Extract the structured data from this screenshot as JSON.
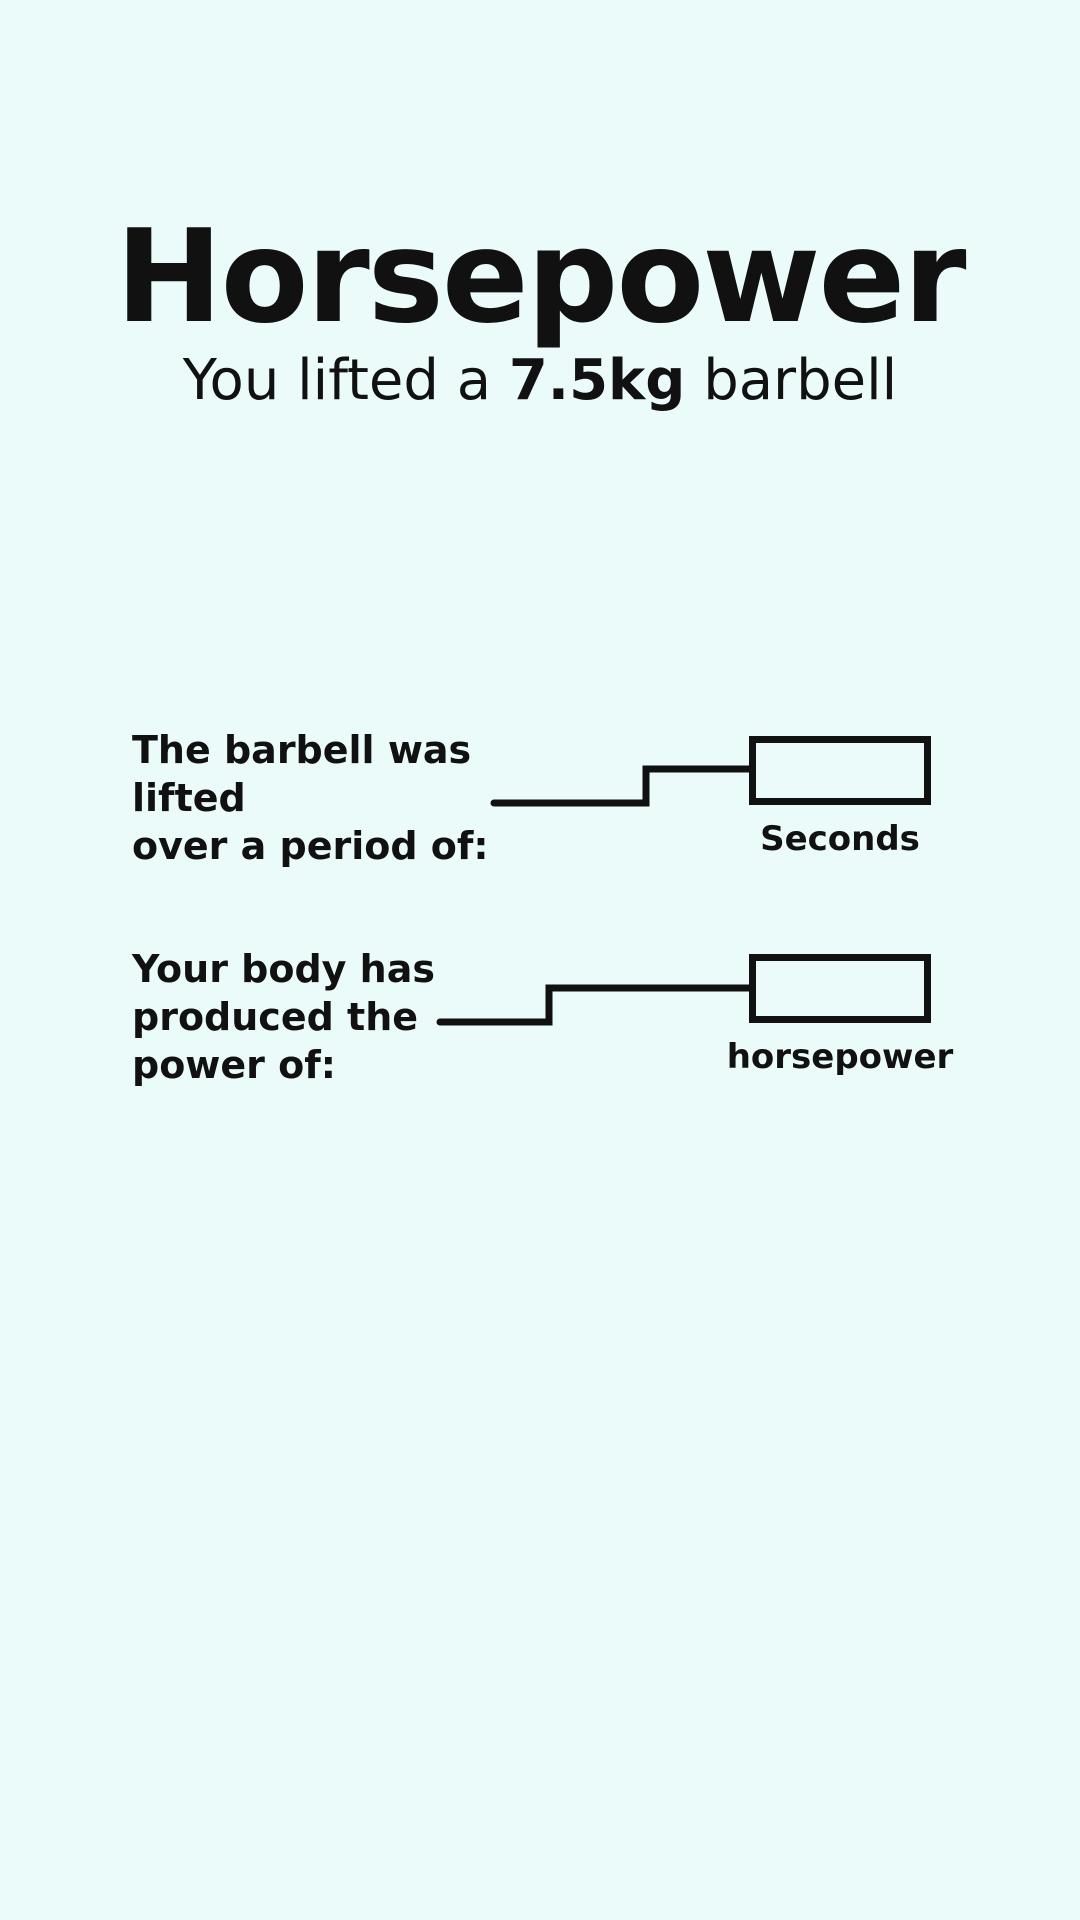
{
  "title": "Horsepower",
  "subtitle": {
    "prefix": "You lifted a",
    "weight": "7.5kg",
    "suffix": "barbell"
  },
  "period_question": {
    "line1": "The barbell was lifted",
    "line2": "over a period of:",
    "value": "",
    "unit": "Seconds"
  },
  "power_question": {
    "line1": "Your body has",
    "line2": "produced the",
    "line3": "power of:",
    "value": "",
    "unit": "horsepower"
  },
  "colors": {
    "background": "#eafbf9",
    "ink": "#111111"
  }
}
